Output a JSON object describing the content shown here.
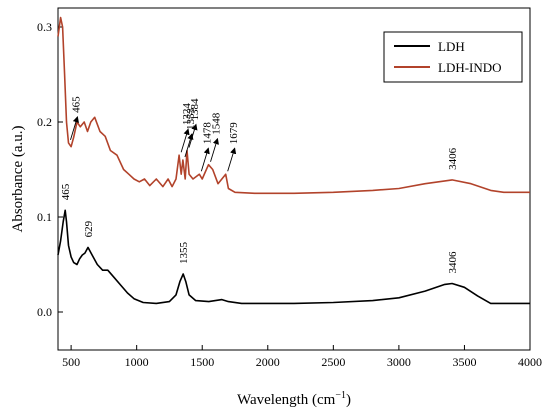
{
  "chart_data": {
    "type": "line",
    "xlabel": "Wavelength (cm",
    "xlabel_sup": "−1",
    "xlabel_end": ")",
    "ylabel": "Absorbance (a.u.)",
    "xlim": [
      400,
      4000
    ],
    "ylim": [
      -0.04,
      0.32
    ],
    "x_ticks": [
      "500",
      "1000",
      "1500",
      "2000",
      "2500",
      "3000",
      "3500",
      "4000"
    ],
    "y_ticks": [
      "0.0",
      "0.1",
      "0.2",
      "0.3"
    ],
    "grid": false,
    "legend_position": "top-right",
    "series": [
      {
        "name": "LDH",
        "color": "#000000",
        "points": [
          [
            400,
            0.06
          ],
          [
            420,
            0.075
          ],
          [
            440,
            0.095
          ],
          [
            455,
            0.107
          ],
          [
            465,
            0.095
          ],
          [
            480,
            0.07
          ],
          [
            500,
            0.058
          ],
          [
            520,
            0.052
          ],
          [
            545,
            0.05
          ],
          [
            565,
            0.056
          ],
          [
            585,
            0.06
          ],
          [
            605,
            0.062
          ],
          [
            629,
            0.068
          ],
          [
            660,
            0.06
          ],
          [
            700,
            0.05
          ],
          [
            740,
            0.044
          ],
          [
            780,
            0.044
          ],
          [
            830,
            0.036
          ],
          [
            880,
            0.028
          ],
          [
            930,
            0.02
          ],
          [
            980,
            0.014
          ],
          [
            1050,
            0.01
          ],
          [
            1150,
            0.009
          ],
          [
            1250,
            0.011
          ],
          [
            1300,
            0.018
          ],
          [
            1330,
            0.032
          ],
          [
            1355,
            0.04
          ],
          [
            1375,
            0.032
          ],
          [
            1400,
            0.018
          ],
          [
            1450,
            0.012
          ],
          [
            1550,
            0.011
          ],
          [
            1600,
            0.012
          ],
          [
            1650,
            0.013
          ],
          [
            1700,
            0.011
          ],
          [
            1800,
            0.009
          ],
          [
            2000,
            0.009
          ],
          [
            2200,
            0.009
          ],
          [
            2500,
            0.01
          ],
          [
            2800,
            0.012
          ],
          [
            3000,
            0.015
          ],
          [
            3200,
            0.022
          ],
          [
            3350,
            0.029
          ],
          [
            3406,
            0.03
          ],
          [
            3500,
            0.026
          ],
          [
            3600,
            0.017
          ],
          [
            3700,
            0.009
          ],
          [
            3800,
            0.009
          ],
          [
            4000,
            0.009
          ]
        ]
      },
      {
        "name": "LDH-INDO",
        "color": "#B2432B",
        "points": [
          [
            400,
            0.29
          ],
          [
            420,
            0.31
          ],
          [
            435,
            0.3
          ],
          [
            450,
            0.25
          ],
          [
            465,
            0.2
          ],
          [
            480,
            0.178
          ],
          [
            500,
            0.174
          ],
          [
            520,
            0.184
          ],
          [
            545,
            0.2
          ],
          [
            570,
            0.195
          ],
          [
            600,
            0.2
          ],
          [
            625,
            0.19
          ],
          [
            650,
            0.2
          ],
          [
            680,
            0.205
          ],
          [
            720,
            0.19
          ],
          [
            760,
            0.185
          ],
          [
            800,
            0.17
          ],
          [
            850,
            0.165
          ],
          [
            900,
            0.15
          ],
          [
            940,
            0.145
          ],
          [
            980,
            0.14
          ],
          [
            1020,
            0.137
          ],
          [
            1060,
            0.14
          ],
          [
            1100,
            0.133
          ],
          [
            1150,
            0.14
          ],
          [
            1200,
            0.132
          ],
          [
            1240,
            0.14
          ],
          [
            1270,
            0.132
          ],
          [
            1300,
            0.14
          ],
          [
            1324,
            0.165
          ],
          [
            1340,
            0.145
          ],
          [
            1353,
            0.16
          ],
          [
            1370,
            0.14
          ],
          [
            1384,
            0.17
          ],
          [
            1400,
            0.145
          ],
          [
            1430,
            0.14
          ],
          [
            1478,
            0.145
          ],
          [
            1500,
            0.14
          ],
          [
            1548,
            0.155
          ],
          [
            1580,
            0.15
          ],
          [
            1620,
            0.135
          ],
          [
            1679,
            0.145
          ],
          [
            1700,
            0.13
          ],
          [
            1750,
            0.126
          ],
          [
            1900,
            0.125
          ],
          [
            2200,
            0.125
          ],
          [
            2500,
            0.126
          ],
          [
            2800,
            0.128
          ],
          [
            3000,
            0.13
          ],
          [
            3200,
            0.135
          ],
          [
            3406,
            0.139
          ],
          [
            3550,
            0.135
          ],
          [
            3700,
            0.128
          ],
          [
            3800,
            0.126
          ],
          [
            4000,
            0.126
          ]
        ]
      }
    ],
    "annotations": [
      {
        "series": "LDH",
        "label": "465",
        "x": 455,
        "y": 0.107
      },
      {
        "series": "LDH",
        "label": "629",
        "x": 629,
        "y": 0.068
      },
      {
        "series": "LDH",
        "label": "1355",
        "x": 1355,
        "y": 0.04
      },
      {
        "series": "LDH",
        "label": "3406",
        "x": 3406,
        "y": 0.03
      },
      {
        "series": "LDH-INDO",
        "label": "465",
        "x": 480,
        "y": 0.178,
        "arrow": true
      },
      {
        "series": "LDH-INDO",
        "label": "1324",
        "x": 1324,
        "y": 0.165,
        "arrow": true
      },
      {
        "series": "LDH-INDO",
        "label": "1353",
        "x": 1353,
        "y": 0.16,
        "arrow": true
      },
      {
        "series": "LDH-INDO",
        "label": "1384",
        "x": 1384,
        "y": 0.17,
        "arrow": true
      },
      {
        "series": "LDH-INDO",
        "label": "1478",
        "x": 1478,
        "y": 0.145,
        "arrow": true
      },
      {
        "series": "LDH-INDO",
        "label": "1548",
        "x": 1548,
        "y": 0.155,
        "arrow": true
      },
      {
        "series": "LDH-INDO",
        "label": "1679",
        "x": 1679,
        "y": 0.145,
        "arrow": true
      },
      {
        "series": "LDH-INDO",
        "label": "3406",
        "x": 3406,
        "y": 0.139
      }
    ]
  }
}
